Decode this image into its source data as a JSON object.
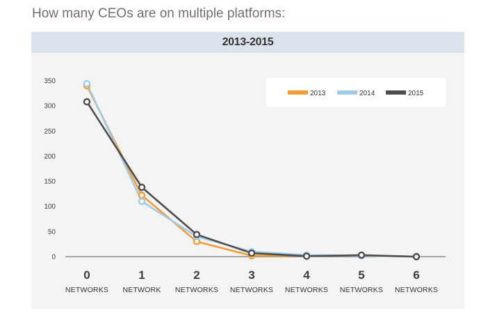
{
  "question": "How many CEOs are on multiple platforms:",
  "colors": {
    "2013": "#f39c38",
    "2014": "#9fcbe4",
    "2015": "#4d4d4f"
  },
  "chart_data": {
    "type": "line",
    "title": "2013-2015",
    "xlabel": "",
    "ylabel": "",
    "categories": [
      "0",
      "1",
      "2",
      "3",
      "4",
      "5",
      "6"
    ],
    "category_sublabels": [
      "NETWORKS",
      "NETWORK",
      "NETWORKS",
      "NETWORKS",
      "NETWORKS",
      "NETWORKS",
      "NETWORKS"
    ],
    "ylim": [
      0,
      350
    ],
    "yticks": [
      0,
      50,
      100,
      150,
      200,
      250,
      300,
      350
    ],
    "grid": false,
    "legend": "top-right",
    "series": [
      {
        "name": "2013",
        "values": [
          340,
          122,
          30,
          2,
          2,
          2,
          0
        ]
      },
      {
        "name": "2014",
        "values": [
          344,
          110,
          40,
          10,
          3,
          2,
          0
        ]
      },
      {
        "name": "2015",
        "values": [
          308,
          138,
          44,
          7,
          1,
          3,
          0
        ]
      }
    ]
  }
}
